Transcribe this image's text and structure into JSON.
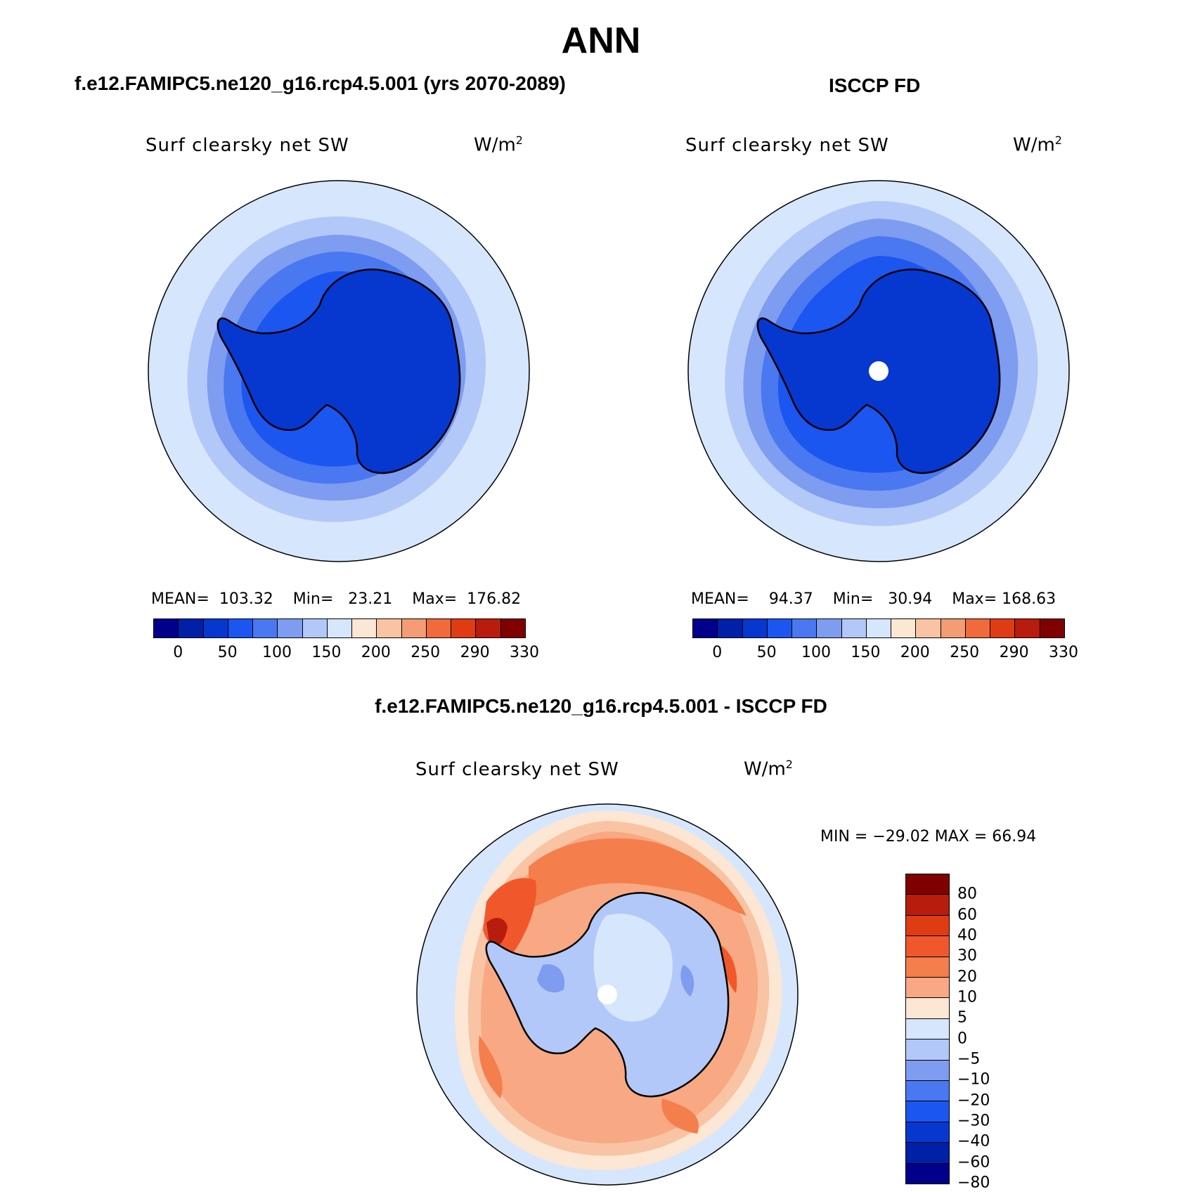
{
  "title": "ANN",
  "panels": {
    "model": {
      "title": "f.e12.FAMIPC5.ne120_g16.rcp4.5.001 (yrs 2070-2089)",
      "variable": "Surf clearsky net SW",
      "units": "W/m",
      "units_sup": "2",
      "mean_label": "MEAN=",
      "mean": "103.32",
      "min_label": "Min=",
      "min": "23.21",
      "max_label": "Max=",
      "max": "176.82"
    },
    "obs": {
      "title": "ISCCP FD",
      "variable": "Surf clearsky net SW",
      "units": "W/m",
      "units_sup": "2",
      "mean_label": "MEAN=",
      "mean": "94.37",
      "min_label": "Min=",
      "min": "30.94",
      "max_label": "Max=",
      "max": "168.63"
    },
    "diff": {
      "title": "f.e12.FAMIPC5.ne120_g16.rcp4.5.001 - ISCCP FD",
      "variable": "Surf clearsky net SW",
      "units": "W/m",
      "units_sup": "2",
      "minmax_text": "MIN = −29.02 MAX =   66.94"
    }
  },
  "colorbar_main": {
    "colors": [
      "#00008b",
      "#0020a8",
      "#0638d0",
      "#1c56f0",
      "#4a78f0",
      "#7e9cf0",
      "#b2c8f8",
      "#d6e6fc",
      "#fce6d4",
      "#f8c4a4",
      "#f49c74",
      "#f06a3c",
      "#e03c14",
      "#b81c0c",
      "#800000"
    ],
    "ticks": [
      "0",
      "50",
      "100",
      "150",
      "200",
      "250",
      "290",
      "330"
    ]
  },
  "colorbar_diff": {
    "colors": [
      "#800000",
      "#b81c0c",
      "#e03c14",
      "#f0582c",
      "#f47e4c",
      "#f8a882",
      "#fce6d4",
      "#d6e6fc",
      "#b2c8f8",
      "#7e9cf0",
      "#4a78f0",
      "#1c56f0",
      "#0638d0",
      "#0020a8",
      "#00008b"
    ],
    "ticks": [
      "80",
      "60",
      "40",
      "30",
      "20",
      "10",
      "5",
      "0",
      "−5",
      "−10",
      "−20",
      "−30",
      "−40",
      "−60",
      "−80"
    ]
  }
}
